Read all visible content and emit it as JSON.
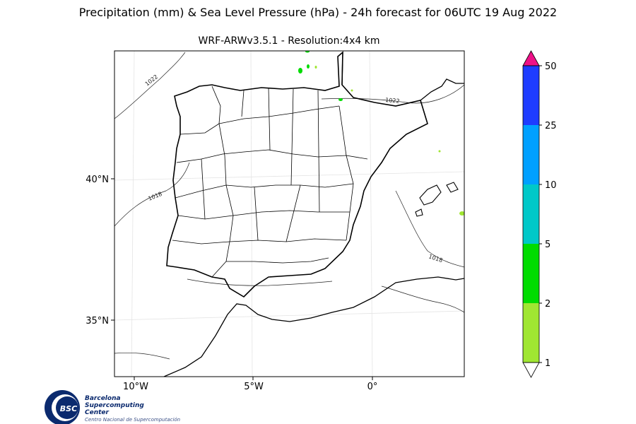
{
  "title": "Precipitation (mm) & Sea Level Pressure (hPa) - 24h forecast for 06UTC 19 Aug 2022",
  "subtitle": "WRF-ARWv3.5.1 - Resolution:4x4 km",
  "axes": {
    "lat_ticks": [
      "40°N",
      "35°N"
    ],
    "lon_ticks": [
      "10°W",
      "5°W",
      "0°"
    ]
  },
  "isobars": [
    "1022",
    "1018",
    "1022",
    "1018"
  ],
  "colorbar": {
    "ticks": [
      "1",
      "2",
      "5",
      "10",
      "25",
      "50"
    ],
    "colors": [
      "#a0e632",
      "#00dc00",
      "#00c8c8",
      "#00a0ff",
      "#1e3cff",
      "#ee1188"
    ]
  },
  "logo": {
    "mark": "BSC",
    "line1": "Barcelona",
    "line2": "Supercomputing",
    "line3": "Center",
    "line4": "Centro Nacional de Supercomputación"
  }
}
